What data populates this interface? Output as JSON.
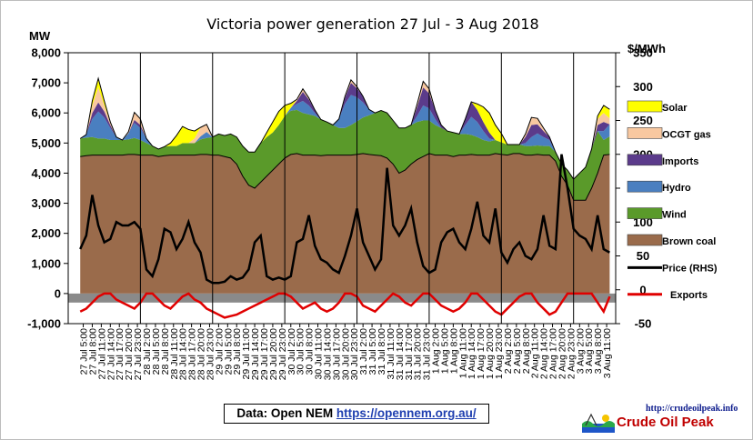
{
  "chart_data": {
    "type": "area",
    "title": "Victoria  power generation  27 Jul - 3 Aug 2018",
    "ylabel_left": "MW",
    "ylabel_right": "$/MWh",
    "ylim_left": [
      -1000,
      8000
    ],
    "ylim_right": [
      -50,
      350
    ],
    "yticks_left": [
      "-1,000",
      "0",
      "1,000",
      "2,000",
      "3,000",
      "4,000",
      "5,000",
      "6,000",
      "7,000",
      "8,000"
    ],
    "yticks_right": [
      "-50",
      "0",
      "50",
      "100",
      "150",
      "200",
      "250",
      "300",
      "350"
    ],
    "grid": "vertical day separators",
    "legend_position": "right",
    "x_labels": [
      "27 Jul  5:00",
      "27 Jul  8:00",
      "27 Jul 11:00",
      "27 Jul 14:00",
      "27 Jul 17:00",
      "27 Jul 20:00",
      "27 Jul 23:00",
      "28 Jul  2:00",
      "28 Jul  5:00",
      "28 Jul  8:00",
      "28 Jul 11:00",
      "28 Jul 14:00",
      "28 Jul 17:00",
      "28 Jul 20:00",
      "28 Jul 23:00",
      "29 Jul  2:00",
      "29 Jul  5:00",
      "29 Jul  8:00",
      "29 Jul 11:00",
      "29 Jul 14:00",
      "29 Jul 17:00",
      "29 Jul 20:00",
      "29 Jul 23:00",
      "30 Jul  2:00",
      "30 Jul  5:00",
      "30 Jul  8:00",
      "30 Jul 11:00",
      "30 Jul 14:00",
      "30 Jul 17:00",
      "30 Jul 20:00",
      "30 Jul 23:00",
      "31 Jul  2:00",
      "31 Jul  5:00",
      "31 Jul  8:00",
      "31 Jul 11:00",
      "31 Jul 14:00",
      "31 Jul 17:00",
      "31 Jul 20:00",
      "31 Jul 23:00",
      "1 Aug  2:00",
      "1 Aug  5:00",
      "1 Aug  8:00",
      "1 Aug 11:00",
      "1 Aug 14:00",
      "1 Aug 17:00",
      "1 Aug 20:00",
      "1 Aug 23:00",
      "2 Aug  2:00",
      "2 Aug  5:00",
      "2 Aug  8:00",
      "2 Aug 11:00",
      "2 Aug 14:00",
      "2 Aug 17:00",
      "2 Aug 20:00",
      "2 Aug 23:00",
      "3 Aug  2:00",
      "3 Aug  5:00",
      "3 Aug  8:00",
      "3 Aug 11:00"
    ],
    "day_boundaries": [
      "27 Jul",
      "28 Jul",
      "29 Jul",
      "30 Jul",
      "31 Jul",
      "1 Aug",
      "2 Aug",
      "3 Aug"
    ],
    "hours": [
      4,
      6,
      8,
      10,
      12,
      14,
      16,
      18,
      20,
      22,
      24,
      26,
      28,
      30,
      32,
      34,
      36,
      38,
      40,
      42,
      44,
      46,
      48,
      50,
      52,
      54,
      56,
      58,
      60,
      62,
      64,
      66,
      68,
      70,
      72,
      74,
      76,
      78,
      80,
      82,
      84,
      86,
      88,
      90,
      92,
      94,
      96,
      98,
      100,
      102,
      104,
      106,
      108,
      110,
      112,
      114,
      116,
      118,
      120,
      122,
      124,
      126,
      128,
      130,
      132,
      134,
      136,
      138,
      140,
      142,
      144,
      146,
      148,
      150,
      152,
      154,
      156,
      158,
      160,
      162,
      164,
      166,
      168,
      170,
      172,
      174,
      176,
      178,
      180
    ],
    "series": [
      {
        "name": "Brown coal",
        "color": "#9a6b4b",
        "values": [
          4550,
          4580,
          4600,
          4600,
          4600,
          4600,
          4600,
          4600,
          4620,
          4620,
          4600,
          4600,
          4600,
          4550,
          4580,
          4600,
          4600,
          4600,
          4600,
          4600,
          4620,
          4620,
          4600,
          4600,
          4550,
          4500,
          4300,
          3900,
          3600,
          3500,
          3700,
          3900,
          4100,
          4300,
          4500,
          4620,
          4650,
          4600,
          4600,
          4600,
          4580,
          4600,
          4600,
          4600,
          4600,
          4600,
          4620,
          4650,
          4620,
          4600,
          4580,
          4500,
          4300,
          4000,
          4100,
          4300,
          4450,
          4550,
          4650,
          4600,
          4600,
          4600,
          4550,
          4600,
          4600,
          4620,
          4600,
          4600,
          4600,
          4650,
          4620,
          4600,
          4650,
          4650,
          4600,
          4600,
          4620,
          4600,
          4600,
          4400,
          3900,
          3600,
          3100,
          3100,
          3100,
          3500,
          4000,
          4600,
          4620
        ]
      },
      {
        "name": "Wind",
        "color": "#5a9a2a",
        "values": [
          600,
          600,
          600,
          550,
          550,
          500,
          500,
          500,
          500,
          550,
          500,
          400,
          300,
          250,
          300,
          300,
          300,
          400,
          400,
          400,
          500,
          550,
          600,
          700,
          700,
          800,
          900,
          1000,
          1100,
          1200,
          1300,
          1300,
          1250,
          1300,
          1400,
          1450,
          1450,
          1400,
          1350,
          1300,
          1200,
          1100,
          1000,
          900,
          900,
          1000,
          1100,
          1200,
          1300,
          1400,
          1500,
          1500,
          1450,
          1500,
          1400,
          1300,
          1250,
          1200,
          1100,
          1000,
          900,
          800,
          800,
          700,
          700,
          650,
          600,
          500,
          450,
          450,
          400,
          350,
          300,
          300,
          300,
          300,
          300,
          300,
          300,
          300,
          400,
          500,
          700,
          900,
          1100,
          1300,
          1400,
          500,
          600
        ]
      },
      {
        "name": "Hydro",
        "color": "#4a7fc0",
        "values": [
          0,
          100,
          600,
          900,
          700,
          400,
          100,
          0,
          200,
          500,
          400,
          150,
          0,
          0,
          0,
          0,
          0,
          0,
          0,
          0,
          100,
          200,
          0,
          0,
          0,
          0,
          0,
          0,
          0,
          0,
          0,
          0,
          0,
          0,
          0,
          100,
          200,
          400,
          300,
          100,
          0,
          0,
          0,
          300,
          800,
          1000,
          800,
          500,
          200,
          0,
          0,
          0,
          0,
          0,
          0,
          0,
          200,
          500,
          400,
          200,
          0,
          0,
          0,
          0,
          300,
          600,
          500,
          300,
          100,
          0,
          0,
          0,
          0,
          0,
          100,
          300,
          400,
          300,
          200,
          0,
          0,
          0,
          0,
          0,
          0,
          0,
          0,
          300,
          400
        ]
      },
      {
        "name": "Imports",
        "color": "#5b3b8b",
        "values": [
          0,
          0,
          200,
          300,
          200,
          100,
          0,
          0,
          0,
          100,
          100,
          0,
          0,
          0,
          0,
          0,
          0,
          0,
          0,
          0,
          0,
          0,
          0,
          0,
          0,
          0,
          0,
          0,
          0,
          0,
          0,
          0,
          0,
          0,
          0,
          0,
          100,
          300,
          200,
          100,
          0,
          0,
          0,
          0,
          200,
          400,
          300,
          200,
          0,
          0,
          0,
          0,
          0,
          0,
          0,
          0,
          300,
          600,
          500,
          300,
          100,
          0,
          0,
          0,
          200,
          500,
          400,
          300,
          200,
          0,
          0,
          0,
          0,
          0,
          200,
          400,
          300,
          200,
          100,
          0,
          0,
          0,
          0,
          0,
          0,
          0,
          200,
          300,
          0
        ]
      },
      {
        "name": "OCGT gas",
        "color": "#f8c8a0",
        "values": [
          0,
          0,
          250,
          500,
          200,
          100,
          0,
          0,
          50,
          250,
          200,
          0,
          0,
          0,
          0,
          0,
          0,
          0,
          0,
          150,
          300,
          250,
          0,
          0,
          0,
          0,
          0,
          0,
          0,
          0,
          0,
          0,
          0,
          0,
          0,
          0,
          50,
          100,
          50,
          0,
          0,
          0,
          0,
          0,
          50,
          100,
          50,
          0,
          0,
          0,
          0,
          0,
          0,
          0,
          0,
          0,
          100,
          200,
          150,
          0,
          0,
          0,
          0,
          0,
          0,
          0,
          0,
          0,
          0,
          0,
          0,
          0,
          0,
          0,
          100,
          250,
          200,
          100,
          0,
          0,
          0,
          0,
          0,
          0,
          0,
          0,
          200,
          300,
          200
        ]
      },
      {
        "name": "Solar",
        "color": "#ffff00",
        "values": [
          0,
          0,
          150,
          300,
          150,
          0,
          0,
          0,
          0,
          0,
          0,
          0,
          0,
          0,
          0,
          100,
          350,
          550,
          450,
          250,
          0,
          0,
          0,
          0,
          0,
          0,
          0,
          0,
          0,
          0,
          0,
          150,
          350,
          450,
          350,
          150,
          0,
          0,
          0,
          0,
          0,
          0,
          0,
          0,
          0,
          0,
          0,
          0,
          0,
          0,
          0,
          0,
          0,
          0,
          0,
          0,
          0,
          0,
          0,
          0,
          0,
          0,
          0,
          0,
          0,
          0,
          200,
          500,
          650,
          500,
          300,
          0,
          0,
          0,
          0,
          0,
          0,
          0,
          0,
          0,
          0,
          0,
          0,
          0,
          0,
          0,
          100,
          250,
          300
        ]
      },
      {
        "name": "Exports",
        "color": "#e00000",
        "values": [
          -600,
          -500,
          -300,
          -100,
          0,
          0,
          -200,
          -300,
          -400,
          -500,
          -300,
          0,
          0,
          -200,
          -400,
          -500,
          -300,
          -100,
          0,
          -200,
          -300,
          -500,
          -600,
          -700,
          -800,
          -750,
          -700,
          -600,
          -500,
          -400,
          -300,
          -200,
          -100,
          0,
          0,
          -100,
          -300,
          -500,
          -400,
          -300,
          -500,
          -600,
          -500,
          -300,
          0,
          0,
          -100,
          -400,
          -500,
          -600,
          -400,
          -200,
          0,
          -100,
          -300,
          -400,
          -200,
          0,
          0,
          -200,
          -400,
          -500,
          -600,
          -500,
          -300,
          0,
          0,
          -200,
          -400,
          -600,
          -700,
          -500,
          -300,
          -100,
          0,
          0,
          -300,
          -500,
          -700,
          -600,
          -300,
          0,
          0,
          0,
          0,
          0,
          -300,
          -600,
          -100
        ]
      },
      {
        "name": "Price (RHS)",
        "color": "#000000",
        "values": [
          60,
          80,
          140,
          95,
          70,
          75,
          100,
          95,
          95,
          100,
          90,
          30,
          20,
          45,
          90,
          85,
          60,
          75,
          100,
          70,
          55,
          15,
          10,
          10,
          12,
          20,
          15,
          18,
          30,
          70,
          80,
          20,
          15,
          18,
          15,
          20,
          70,
          75,
          110,
          65,
          45,
          40,
          30,
          25,
          50,
          80,
          120,
          70,
          50,
          30,
          45,
          180,
          95,
          80,
          95,
          120,
          70,
          35,
          25,
          30,
          70,
          85,
          90,
          70,
          60,
          90,
          130,
          80,
          70,
          120,
          55,
          40,
          60,
          70,
          50,
          45,
          60,
          110,
          65,
          60,
          200,
          150,
          90,
          80,
          75,
          60,
          110,
          60,
          55
        ]
      }
    ]
  },
  "legend_items": [
    {
      "label": "Solar",
      "color": "#ffff00",
      "kind": "box"
    },
    {
      "label": "OCGT gas",
      "color": "#f8c8a0",
      "kind": "box"
    },
    {
      "label": "Imports",
      "color": "#5b3b8b",
      "kind": "box"
    },
    {
      "label": "Hydro",
      "color": "#4a7fc0",
      "kind": "box"
    },
    {
      "label": "Wind",
      "color": "#5a9a2a",
      "kind": "box"
    },
    {
      "label": "Brown coal",
      "color": "#9a6b4b",
      "kind": "box"
    },
    {
      "label": "Price (RHS)",
      "color": "#000000",
      "kind": "line"
    },
    {
      "label": "Exports",
      "color": "#e00000",
      "kind": "line"
    }
  ],
  "source": {
    "label": "Data: Open NEM",
    "link": "https://opennem.org.au/"
  },
  "logo": {
    "url": "http://crudeoilpeak.info",
    "name": "Crude Oil Peak"
  }
}
